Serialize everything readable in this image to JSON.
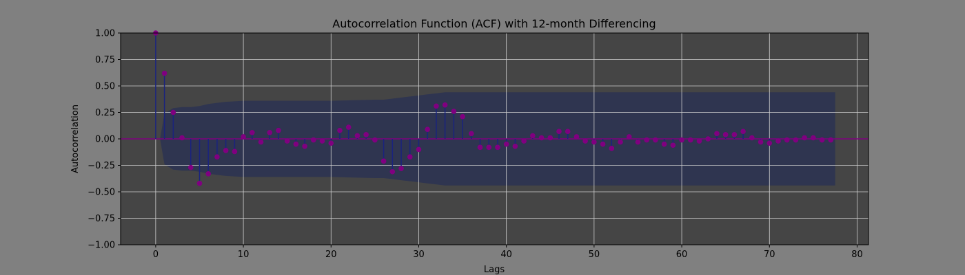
{
  "chart_data": {
    "type": "stem",
    "title": "Autocorrelation Function (ACF) with 12-month Differencing",
    "xlabel": "Lags",
    "ylabel": "Autocorrelation",
    "xlim": [
      -4,
      81.3
    ],
    "ylim": [
      -1.0,
      1.0
    ],
    "xticks": [
      0,
      10,
      20,
      30,
      40,
      50,
      60,
      70,
      80
    ],
    "yticks": [
      -1.0,
      -0.75,
      -0.5,
      -0.25,
      0.0,
      0.25,
      0.5,
      0.75,
      1.0
    ],
    "xtick_labels": [
      "0",
      "10",
      "20",
      "30",
      "40",
      "50",
      "60",
      "70",
      "80"
    ],
    "ytick_labels": [
      "−1.00",
      "−0.75",
      "−0.50",
      "−0.25",
      "0.00",
      "0.25",
      "0.50",
      "0.75",
      "1.00"
    ],
    "grid": true,
    "colors": {
      "figure_bg": "#808080",
      "axes_bg": "#454545",
      "grid": "#d0d0d0",
      "stem": "#1a237e",
      "marker": "#800080",
      "baseline": "#800080",
      "confidence_band": "#2f3550"
    },
    "lags": [
      0,
      1,
      2,
      3,
      4,
      5,
      6,
      7,
      8,
      9,
      10,
      11,
      12,
      13,
      14,
      15,
      16,
      17,
      18,
      19,
      20,
      21,
      22,
      23,
      24,
      25,
      26,
      27,
      28,
      29,
      30,
      31,
      32,
      33,
      34,
      35,
      36,
      37,
      38,
      39,
      40,
      41,
      42,
      43,
      44,
      45,
      46,
      47,
      48,
      49,
      50,
      51,
      52,
      53,
      54,
      55,
      56,
      57,
      58,
      59,
      60,
      61,
      62,
      63,
      64,
      65,
      66,
      67,
      68,
      69,
      70,
      71,
      72,
      73,
      74,
      75,
      76,
      77
    ],
    "acf": [
      1.0,
      0.62,
      0.25,
      0.01,
      -0.27,
      -0.42,
      -0.33,
      -0.17,
      -0.11,
      -0.12,
      0.02,
      0.06,
      -0.03,
      0.06,
      0.08,
      -0.02,
      -0.05,
      -0.07,
      -0.01,
      -0.02,
      -0.04,
      0.08,
      0.11,
      0.03,
      0.04,
      -0.01,
      -0.21,
      -0.31,
      -0.28,
      -0.17,
      -0.1,
      0.09,
      0.31,
      0.32,
      0.26,
      0.21,
      0.05,
      -0.08,
      -0.08,
      -0.08,
      -0.05,
      -0.07,
      -0.02,
      0.03,
      0.01,
      0.01,
      0.07,
      0.07,
      0.02,
      -0.02,
      -0.03,
      -0.05,
      -0.09,
      -0.03,
      0.02,
      -0.03,
      -0.01,
      -0.01,
      -0.05,
      -0.06,
      -0.01,
      -0.01,
      -0.02,
      0.0,
      0.05,
      0.04,
      0.04,
      0.07,
      0.01,
      -0.03,
      -0.04,
      -0.02,
      -0.01,
      -0.01,
      0.01,
      0.01,
      -0.01,
      -0.01
    ],
    "confidence_interval": {
      "lags": [
        0.5,
        1,
        2,
        3,
        4,
        5,
        6,
        7,
        8,
        10,
        15,
        20,
        25,
        26,
        27,
        28,
        29,
        30,
        31,
        32,
        33,
        35,
        40,
        50,
        60,
        70,
        77.5
      ],
      "upper": [
        0.0,
        0.24,
        0.29,
        0.3,
        0.3,
        0.31,
        0.33,
        0.34,
        0.35,
        0.36,
        0.36,
        0.36,
        0.37,
        0.37,
        0.38,
        0.39,
        0.4,
        0.41,
        0.42,
        0.43,
        0.44,
        0.44,
        0.44,
        0.44,
        0.44,
        0.44,
        0.44
      ]
    }
  }
}
